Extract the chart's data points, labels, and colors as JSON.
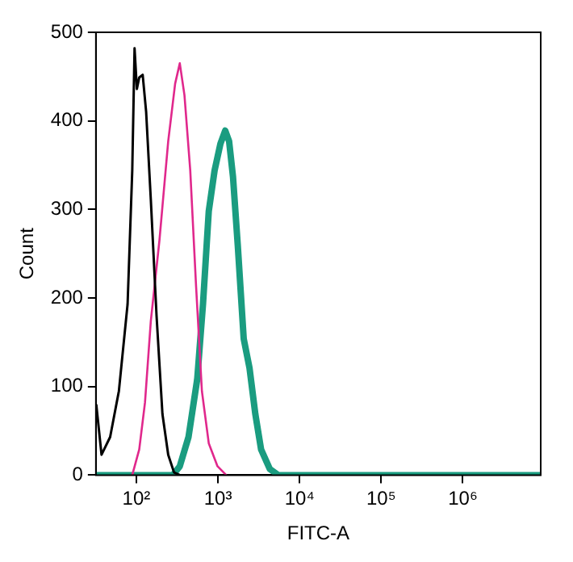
{
  "chart_data": {
    "type": "line",
    "xlabel": "FITC-A",
    "ylabel": "Count",
    "log": "x",
    "xlim": [
      32,
      9000000
    ],
    "ylim": [
      0,
      500
    ],
    "xticks": [
      {
        "value": 100,
        "label": "10²"
      },
      {
        "value": 1000,
        "label": "10³"
      },
      {
        "value": 10000,
        "label": "10⁴"
      },
      {
        "value": 100000,
        "label": "10⁵"
      },
      {
        "value": 1000000,
        "label": "10⁶"
      }
    ],
    "yticks": [
      0,
      100,
      200,
      300,
      400,
      500
    ],
    "grid": false,
    "legend": false,
    "marker": "none",
    "line_style": "solid",
    "series": [
      {
        "color": "#000000",
        "x": [
          32.4,
          37.5,
          47.8,
          61.2,
          78.2,
          89.2,
          95.2,
          101.6,
          108.6,
          119.7,
          132,
          150.6,
          177,
          209,
          246,
          290,
          341,
          400
        ],
        "values": [
          79,
          23,
          43,
          95,
          193,
          344,
          482,
          436,
          449,
          452,
          410,
          311,
          180,
          69,
          23,
          3,
          0,
          0
        ]
      },
      {
        "color": "#e0288c",
        "x": [
          89.2,
          108.6,
          127.8,
          150.6,
          192,
          246,
          299,
          341,
          389,
          458,
          540,
          636,
          772,
          988,
          1265
        ],
        "values": [
          0,
          29,
          82,
          174,
          265,
          377,
          442,
          465,
          429,
          344,
          213,
          95,
          36,
          10,
          0
        ]
      },
      {
        "color": "#1a9c80",
        "x": [
          32.4,
          280,
          341,
          436,
          557,
          656,
          772,
          910,
          1072,
          1227,
          1370,
          1529,
          1751,
          2069,
          2437,
          2870,
          3378,
          4310,
          5500,
          9000000
        ],
        "values": [
          0,
          0,
          10,
          43,
          108,
          193,
          298,
          344,
          374,
          389,
          377,
          337,
          259,
          154,
          121,
          69,
          29,
          7,
          0,
          0
        ]
      }
    ]
  }
}
